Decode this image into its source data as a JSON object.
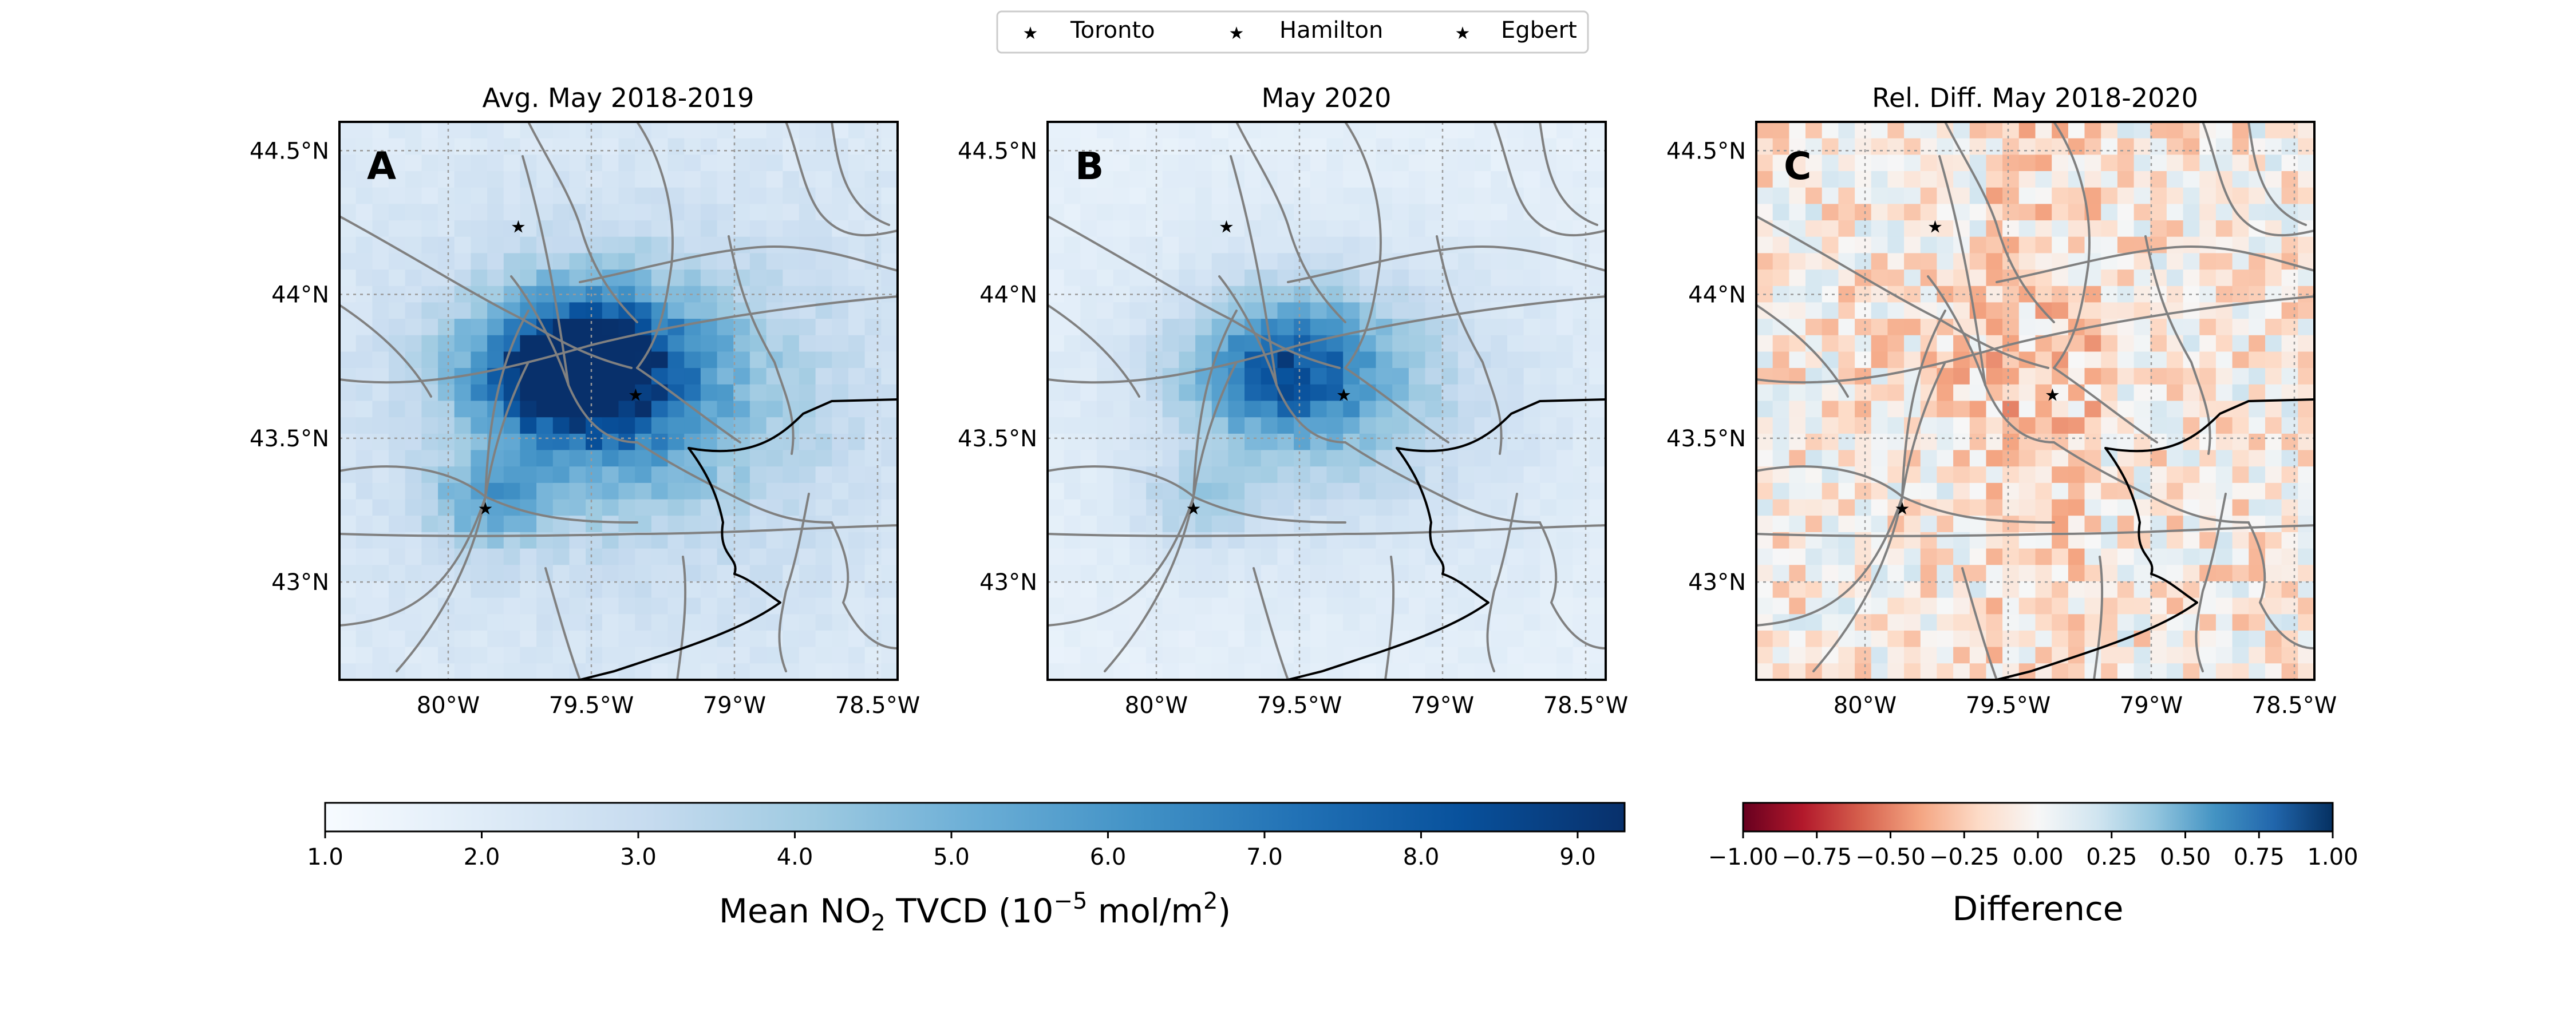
{
  "legend": {
    "items": [
      {
        "label": "Toronto",
        "color": "#000000",
        "marker": "star"
      },
      {
        "label": "Hamilton",
        "color": "#0000ff",
        "marker": "star"
      },
      {
        "label": "Egbert",
        "color": "#ff0000",
        "marker": "star"
      }
    ]
  },
  "panels": [
    {
      "letter": "A",
      "title": "Avg. May 2018-2019",
      "variant": "avg",
      "colormap": "Blues"
    },
    {
      "letter": "B",
      "title": "May 2020",
      "variant": "may2020",
      "colormap": "Blues"
    },
    {
      "letter": "C",
      "title": "Rel. Diff. May 2018-2020",
      "variant": "diff",
      "colormap": "RdBu"
    }
  ],
  "map_axes": {
    "x_ticks": [
      "80°W",
      "79.5°W",
      "79°W",
      "78.5°W"
    ],
    "y_ticks": [
      "44.5°N",
      "44°N",
      "43.5°N",
      "43°N"
    ],
    "lon_range": [
      -80.38,
      -78.43
    ],
    "lat_range": [
      42.66,
      44.6
    ],
    "gridlines": true
  },
  "cities": [
    {
      "name": "Toronto",
      "lon": -79.345,
      "lat": 43.65,
      "color": "#000000"
    },
    {
      "name": "Hamilton",
      "lon": -79.87,
      "lat": 43.255,
      "color": "#0000ff"
    },
    {
      "name": "Egbert",
      "lon": -79.755,
      "lat": 44.235,
      "color": "#ff0000"
    }
  ],
  "colorbar_no2": {
    "label_main": "Mean NO",
    "label_sub": "2",
    "label_mid": " TVCD (10",
    "label_sup": "−5",
    "label_unit": " mol/m",
    "label_sup2": "2",
    "label_close": ")",
    "range": [
      1.0,
      9.3
    ],
    "ticks": [
      "1.0",
      "2.0",
      "3.0",
      "4.0",
      "5.0",
      "6.0",
      "7.0",
      "8.0",
      "9.0"
    ],
    "tick_values": [
      1,
      2,
      3,
      4,
      5,
      6,
      7,
      8,
      9
    ]
  },
  "colorbar_diff": {
    "label": "Difference",
    "range": [
      -1.0,
      1.0
    ],
    "ticks": [
      "−1.00",
      "−0.75",
      "−0.50",
      "−0.25",
      "0.00",
      "0.25",
      "0.50",
      "0.75",
      "1.00"
    ],
    "tick_values": [
      -1,
      -0.75,
      -0.5,
      -0.25,
      0,
      0.25,
      0.5,
      0.75,
      1
    ]
  },
  "colors": {
    "roads": "#808080",
    "shoreline": "#000000",
    "gridline": "#9a9a9a"
  }
}
